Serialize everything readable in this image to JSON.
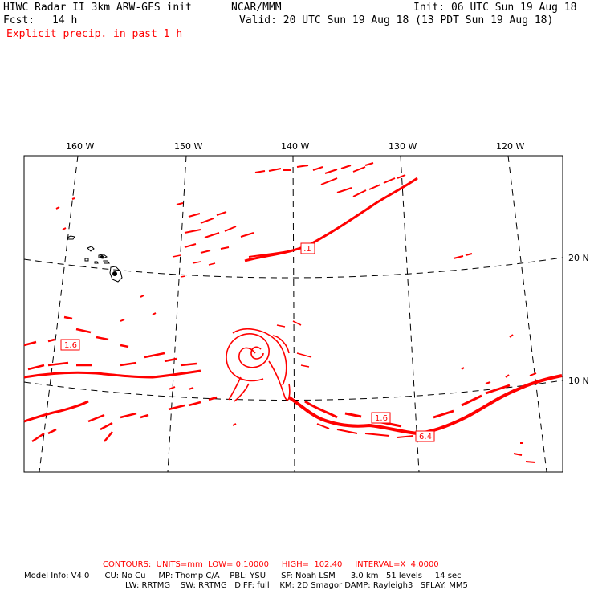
{
  "header": {
    "model_title": "HIWC Radar II 3km ARW-GFS init",
    "org": "NCAR/MMM",
    "init": "Init: 06 UTC Sun 19 Aug 18",
    "fcst_label": "Fcst:",
    "fcst_value": "14 h",
    "valid": "Valid: 20 UTC Sun 19 Aug 18 (13 PDT Sun 19 Aug 18)",
    "field": "Explicit precip. in past 1 h"
  },
  "map": {
    "lon_labels": [
      "160 W",
      "150 W",
      "140 W",
      "130 W",
      "120 W"
    ],
    "lat_labels": [
      "20 N",
      "10 N"
    ],
    "contour_labels": [
      ".1",
      "1.6",
      "1.6",
      "6.4"
    ],
    "precip_color": "#ff0000",
    "coast_color": "#000000"
  },
  "footer": {
    "contours": "CONTOURS:  UNITS=mm  LOW= 0.10000     HIGH=  102.40     INTERVAL=X  4.0000",
    "line1": "Model Info: V4.0      CU: No Cu     MP: Thomp C/A    PBL: YSU      SF: Noah LSM      3.0 km   51 levels     14 sec",
    "line2": "LW: RRTMG    SW: RRTMG   DIFF: full    KM: 2D Smagor DAMP: Rayleigh3   SFLAY: MM5"
  }
}
